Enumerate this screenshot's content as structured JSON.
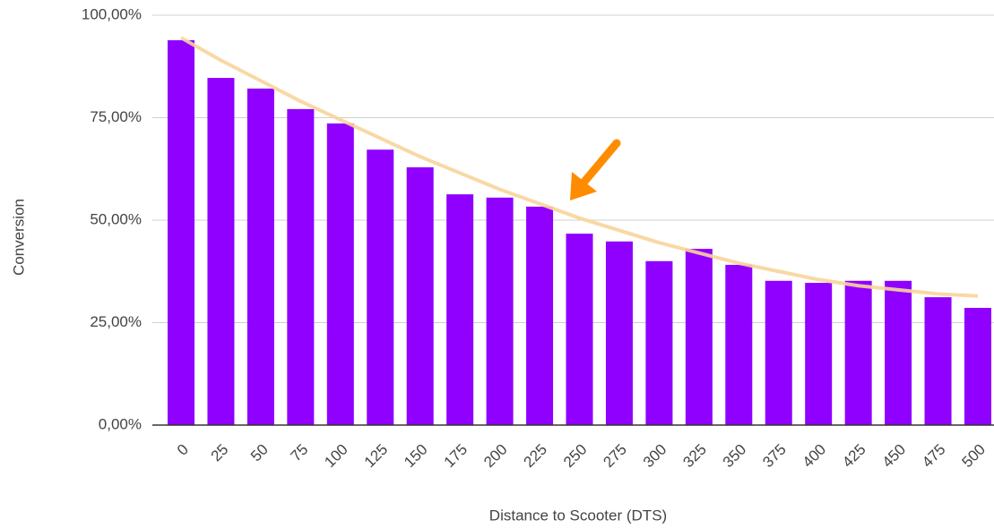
{
  "chart_data": {
    "type": "bar",
    "x_label": "Distance to Scooter (DTS)",
    "y_label": "Conversion",
    "categories": [
      "0",
      "25",
      "50",
      "75",
      "100",
      "125",
      "150",
      "175",
      "200",
      "225",
      "250",
      "275",
      "300",
      "325",
      "350",
      "375",
      "400",
      "425",
      "450",
      "475",
      "500"
    ],
    "values": [
      93.9,
      84.7,
      82.1,
      77.1,
      73.6,
      67.2,
      62.9,
      56.3,
      55.5,
      53.3,
      46.7,
      44.8,
      40.0,
      43.0,
      39.1,
      35.2,
      34.7,
      35.2,
      35.2,
      31.2,
      28.6
    ],
    "color": "#8f00ff",
    "trendline": {
      "color": "#f8d49a",
      "values": [
        94.5,
        89,
        84,
        79,
        74.5,
        70,
        65.5,
        61.5,
        57.5,
        54,
        50.5,
        47.5,
        44.5,
        42,
        39.5,
        37.5,
        35.5,
        34,
        33,
        32,
        31.5
      ]
    },
    "ylim": [
      0,
      100
    ],
    "yticks": [
      {
        "value": 0,
        "label": "0,00%"
      },
      {
        "value": 25,
        "label": "25,00%"
      },
      {
        "value": 50,
        "label": "50,00%"
      },
      {
        "value": 75,
        "label": "75,00%"
      },
      {
        "value": 100,
        "label": "100,00%"
      }
    ],
    "grid": true
  }
}
